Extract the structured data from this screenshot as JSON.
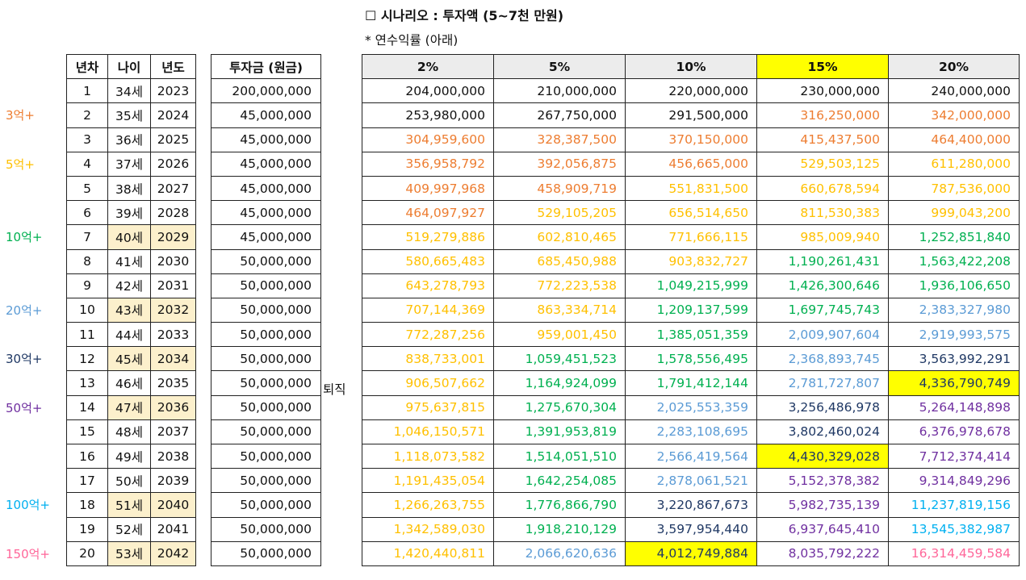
{
  "title": "☐ 시나리오 : 투자액 (5~7천 만원)",
  "subtitle": "* 연수익률 (아래)",
  "retire_label": "퇴직",
  "milestones": [
    {
      "label": "3억+",
      "row": 1,
      "color": "orange"
    },
    {
      "label": "5억+",
      "row": 3,
      "color": "gold"
    },
    {
      "label": "10억+",
      "row": 6,
      "color": "green"
    },
    {
      "label": "20억+",
      "row": 9,
      "color": "blue"
    },
    {
      "label": "30억+",
      "row": 11,
      "color": "navy"
    },
    {
      "label": "50억+",
      "row": 13,
      "color": "purple"
    },
    {
      "label": "100억+",
      "row": 17,
      "color": "cyan"
    },
    {
      "label": "150억+",
      "row": 19,
      "color": "pink"
    }
  ],
  "left_headers": [
    "년차",
    "나이",
    "년도"
  ],
  "invest_header": "투자금 (원금)",
  "rate_headers": [
    "2%",
    "5%",
    "10%",
    "15%",
    "20%"
  ],
  "highlight_header": 3,
  "rows": [
    {
      "n": "1",
      "age": "34세",
      "year": "2023",
      "invest": "200,000,000",
      "hl": false,
      "values": [
        "204,000,000",
        "210,000,000",
        "220,000,000",
        "230,000,000",
        "240,000,000"
      ],
      "colors": [
        "black",
        "black",
        "black",
        "black",
        "black"
      ],
      "yl": []
    },
    {
      "n": "2",
      "age": "35세",
      "year": "2024",
      "invest": "45,000,000",
      "hl": false,
      "values": [
        "253,980,000",
        "267,750,000",
        "291,500,000",
        "316,250,000",
        "342,000,000"
      ],
      "colors": [
        "black",
        "black",
        "black",
        "orange",
        "orange"
      ],
      "yl": []
    },
    {
      "n": "3",
      "age": "36세",
      "year": "2025",
      "invest": "45,000,000",
      "hl": false,
      "values": [
        "304,959,600",
        "328,387,500",
        "370,150,000",
        "415,437,500",
        "464,400,000"
      ],
      "colors": [
        "orange",
        "orange",
        "orange",
        "orange",
        "orange"
      ],
      "yl": []
    },
    {
      "n": "4",
      "age": "37세",
      "year": "2026",
      "invest": "45,000,000",
      "hl": false,
      "values": [
        "356,958,792",
        "392,056,875",
        "456,665,000",
        "529,503,125",
        "611,280,000"
      ],
      "colors": [
        "orange",
        "orange",
        "orange",
        "gold",
        "gold"
      ],
      "yl": []
    },
    {
      "n": "5",
      "age": "38세",
      "year": "2027",
      "invest": "45,000,000",
      "hl": false,
      "values": [
        "409,997,968",
        "458,909,719",
        "551,831,500",
        "660,678,594",
        "787,536,000"
      ],
      "colors": [
        "orange",
        "orange",
        "gold",
        "gold",
        "gold"
      ],
      "yl": []
    },
    {
      "n": "6",
      "age": "39세",
      "year": "2028",
      "invest": "45,000,000",
      "hl": false,
      "values": [
        "464,097,927",
        "529,105,205",
        "656,514,650",
        "811,530,383",
        "999,043,200"
      ],
      "colors": [
        "orange",
        "gold",
        "gold",
        "gold",
        "gold"
      ],
      "yl": []
    },
    {
      "n": "7",
      "age": "40세",
      "year": "2029",
      "invest": "45,000,000",
      "hl": true,
      "values": [
        "519,279,886",
        "602,810,465",
        "771,666,115",
        "985,009,940",
        "1,252,851,840"
      ],
      "colors": [
        "gold",
        "gold",
        "gold",
        "gold",
        "green"
      ],
      "yl": []
    },
    {
      "n": "8",
      "age": "41세",
      "year": "2030",
      "invest": "50,000,000",
      "hl": false,
      "values": [
        "580,665,483",
        "685,450,988",
        "903,832,727",
        "1,190,261,431",
        "1,563,422,208"
      ],
      "colors": [
        "gold",
        "gold",
        "gold",
        "green",
        "green"
      ],
      "yl": []
    },
    {
      "n": "9",
      "age": "42세",
      "year": "2031",
      "invest": "50,000,000",
      "hl": false,
      "values": [
        "643,278,793",
        "772,223,538",
        "1,049,215,999",
        "1,426,300,646",
        "1,936,106,650"
      ],
      "colors": [
        "gold",
        "gold",
        "green",
        "green",
        "green"
      ],
      "yl": []
    },
    {
      "n": "10",
      "age": "43세",
      "year": "2032",
      "invest": "50,000,000",
      "hl": true,
      "values": [
        "707,144,369",
        "863,334,714",
        "1,209,137,599",
        "1,697,745,743",
        "2,383,327,980"
      ],
      "colors": [
        "gold",
        "gold",
        "green",
        "green",
        "blue"
      ],
      "yl": []
    },
    {
      "n": "11",
      "age": "44세",
      "year": "2033",
      "invest": "50,000,000",
      "hl": false,
      "values": [
        "772,287,256",
        "959,001,450",
        "1,385,051,359",
        "2,009,907,604",
        "2,919,993,575"
      ],
      "colors": [
        "gold",
        "gold",
        "green",
        "blue",
        "blue"
      ],
      "yl": []
    },
    {
      "n": "12",
      "age": "45세",
      "year": "2034",
      "invest": "50,000,000",
      "hl": true,
      "values": [
        "838,733,001",
        "1,059,451,523",
        "1,578,556,495",
        "2,368,893,745",
        "3,563,992,291"
      ],
      "colors": [
        "gold",
        "green",
        "green",
        "blue",
        "navy"
      ],
      "yl": []
    },
    {
      "n": "13",
      "age": "46세",
      "year": "2035",
      "invest": "50,000,000",
      "hl": false,
      "values": [
        "906,507,662",
        "1,164,924,099",
        "1,791,412,144",
        "2,781,727,807",
        "4,336,790,749"
      ],
      "colors": [
        "gold",
        "green",
        "green",
        "blue",
        "navy"
      ],
      "yl": [
        4
      ]
    },
    {
      "n": "14",
      "age": "47세",
      "year": "2036",
      "invest": "50,000,000",
      "hl": true,
      "values": [
        "975,637,815",
        "1,275,670,304",
        "2,025,553,359",
        "3,256,486,978",
        "5,264,148,898"
      ],
      "colors": [
        "gold",
        "green",
        "blue",
        "navy",
        "purple"
      ],
      "yl": []
    },
    {
      "n": "15",
      "age": "48세",
      "year": "2037",
      "invest": "50,000,000",
      "hl": false,
      "values": [
        "1,046,150,571",
        "1,391,953,819",
        "2,283,108,695",
        "3,802,460,024",
        "6,376,978,678"
      ],
      "colors": [
        "gold",
        "green",
        "blue",
        "navy",
        "purple"
      ],
      "yl": []
    },
    {
      "n": "16",
      "age": "49세",
      "year": "2038",
      "invest": "50,000,000",
      "hl": false,
      "values": [
        "1,118,073,582",
        "1,514,051,510",
        "2,566,419,564",
        "4,430,329,028",
        "7,712,374,414"
      ],
      "colors": [
        "gold",
        "green",
        "blue",
        "navy",
        "purple"
      ],
      "yl": [
        3
      ]
    },
    {
      "n": "17",
      "age": "50세",
      "year": "2039",
      "invest": "50,000,000",
      "hl": false,
      "values": [
        "1,191,435,054",
        "1,642,254,085",
        "2,878,061,521",
        "5,152,378,382",
        "9,314,849,296"
      ],
      "colors": [
        "gold",
        "green",
        "blue",
        "purple",
        "purple"
      ],
      "yl": []
    },
    {
      "n": "18",
      "age": "51세",
      "year": "2040",
      "invest": "50,000,000",
      "hl": true,
      "values": [
        "1,266,263,755",
        "1,776,866,790",
        "3,220,867,673",
        "5,982,735,139",
        "11,237,819,156"
      ],
      "colors": [
        "gold",
        "green",
        "navy",
        "purple",
        "cyan"
      ],
      "yl": []
    },
    {
      "n": "19",
      "age": "52세",
      "year": "2041",
      "invest": "50,000,000",
      "hl": false,
      "values": [
        "1,342,589,030",
        "1,918,210,129",
        "3,597,954,440",
        "6,937,645,410",
        "13,545,382,987"
      ],
      "colors": [
        "gold",
        "green",
        "navy",
        "purple",
        "cyan"
      ],
      "yl": []
    },
    {
      "n": "20",
      "age": "53세",
      "year": "2042",
      "invest": "50,000,000",
      "hl": true,
      "values": [
        "1,420,440,811",
        "2,066,620,636",
        "4,012,749,884",
        "8,035,792,222",
        "16,314,459,584"
      ],
      "colors": [
        "gold",
        "blue",
        "navy",
        "purple",
        "pink"
      ],
      "yl": [
        2
      ]
    }
  ]
}
